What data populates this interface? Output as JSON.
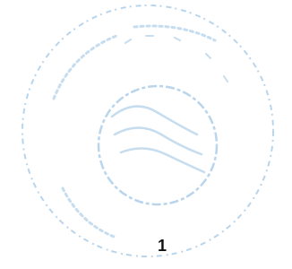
{
  "page": {
    "page_number": "1"
  }
}
